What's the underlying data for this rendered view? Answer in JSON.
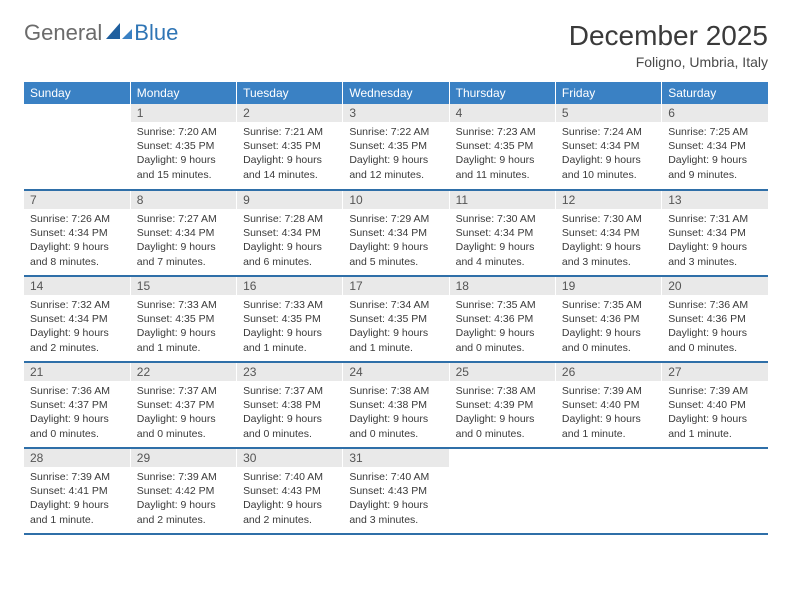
{
  "logo": {
    "general": "General",
    "blue": "Blue"
  },
  "title": "December 2025",
  "location": "Foligno, Umbria, Italy",
  "colors": {
    "header_bg": "#3a81c4",
    "row_border": "#2f6fa8",
    "daynum_bg": "#e9e9e9",
    "logo_gray": "#6b6b6b",
    "logo_blue": "#2f75b5"
  },
  "weekdays": [
    "Sunday",
    "Monday",
    "Tuesday",
    "Wednesday",
    "Thursday",
    "Friday",
    "Saturday"
  ],
  "weeks": [
    [
      {
        "n": "",
        "l1": "",
        "l2": "",
        "l3": ""
      },
      {
        "n": "1",
        "l1": "Sunrise: 7:20 AM",
        "l2": "Sunset: 4:35 PM",
        "l3": "Daylight: 9 hours and 15 minutes."
      },
      {
        "n": "2",
        "l1": "Sunrise: 7:21 AM",
        "l2": "Sunset: 4:35 PM",
        "l3": "Daylight: 9 hours and 14 minutes."
      },
      {
        "n": "3",
        "l1": "Sunrise: 7:22 AM",
        "l2": "Sunset: 4:35 PM",
        "l3": "Daylight: 9 hours and 12 minutes."
      },
      {
        "n": "4",
        "l1": "Sunrise: 7:23 AM",
        "l2": "Sunset: 4:35 PM",
        "l3": "Daylight: 9 hours and 11 minutes."
      },
      {
        "n": "5",
        "l1": "Sunrise: 7:24 AM",
        "l2": "Sunset: 4:34 PM",
        "l3": "Daylight: 9 hours and 10 minutes."
      },
      {
        "n": "6",
        "l1": "Sunrise: 7:25 AM",
        "l2": "Sunset: 4:34 PM",
        "l3": "Daylight: 9 hours and 9 minutes."
      }
    ],
    [
      {
        "n": "7",
        "l1": "Sunrise: 7:26 AM",
        "l2": "Sunset: 4:34 PM",
        "l3": "Daylight: 9 hours and 8 minutes."
      },
      {
        "n": "8",
        "l1": "Sunrise: 7:27 AM",
        "l2": "Sunset: 4:34 PM",
        "l3": "Daylight: 9 hours and 7 minutes."
      },
      {
        "n": "9",
        "l1": "Sunrise: 7:28 AM",
        "l2": "Sunset: 4:34 PM",
        "l3": "Daylight: 9 hours and 6 minutes."
      },
      {
        "n": "10",
        "l1": "Sunrise: 7:29 AM",
        "l2": "Sunset: 4:34 PM",
        "l3": "Daylight: 9 hours and 5 minutes."
      },
      {
        "n": "11",
        "l1": "Sunrise: 7:30 AM",
        "l2": "Sunset: 4:34 PM",
        "l3": "Daylight: 9 hours and 4 minutes."
      },
      {
        "n": "12",
        "l1": "Sunrise: 7:30 AM",
        "l2": "Sunset: 4:34 PM",
        "l3": "Daylight: 9 hours and 3 minutes."
      },
      {
        "n": "13",
        "l1": "Sunrise: 7:31 AM",
        "l2": "Sunset: 4:34 PM",
        "l3": "Daylight: 9 hours and 3 minutes."
      }
    ],
    [
      {
        "n": "14",
        "l1": "Sunrise: 7:32 AM",
        "l2": "Sunset: 4:34 PM",
        "l3": "Daylight: 9 hours and 2 minutes."
      },
      {
        "n": "15",
        "l1": "Sunrise: 7:33 AM",
        "l2": "Sunset: 4:35 PM",
        "l3": "Daylight: 9 hours and 1 minute."
      },
      {
        "n": "16",
        "l1": "Sunrise: 7:33 AM",
        "l2": "Sunset: 4:35 PM",
        "l3": "Daylight: 9 hours and 1 minute."
      },
      {
        "n": "17",
        "l1": "Sunrise: 7:34 AM",
        "l2": "Sunset: 4:35 PM",
        "l3": "Daylight: 9 hours and 1 minute."
      },
      {
        "n": "18",
        "l1": "Sunrise: 7:35 AM",
        "l2": "Sunset: 4:36 PM",
        "l3": "Daylight: 9 hours and 0 minutes."
      },
      {
        "n": "19",
        "l1": "Sunrise: 7:35 AM",
        "l2": "Sunset: 4:36 PM",
        "l3": "Daylight: 9 hours and 0 minutes."
      },
      {
        "n": "20",
        "l1": "Sunrise: 7:36 AM",
        "l2": "Sunset: 4:36 PM",
        "l3": "Daylight: 9 hours and 0 minutes."
      }
    ],
    [
      {
        "n": "21",
        "l1": "Sunrise: 7:36 AM",
        "l2": "Sunset: 4:37 PM",
        "l3": "Daylight: 9 hours and 0 minutes."
      },
      {
        "n": "22",
        "l1": "Sunrise: 7:37 AM",
        "l2": "Sunset: 4:37 PM",
        "l3": "Daylight: 9 hours and 0 minutes."
      },
      {
        "n": "23",
        "l1": "Sunrise: 7:37 AM",
        "l2": "Sunset: 4:38 PM",
        "l3": "Daylight: 9 hours and 0 minutes."
      },
      {
        "n": "24",
        "l1": "Sunrise: 7:38 AM",
        "l2": "Sunset: 4:38 PM",
        "l3": "Daylight: 9 hours and 0 minutes."
      },
      {
        "n": "25",
        "l1": "Sunrise: 7:38 AM",
        "l2": "Sunset: 4:39 PM",
        "l3": "Daylight: 9 hours and 0 minutes."
      },
      {
        "n": "26",
        "l1": "Sunrise: 7:39 AM",
        "l2": "Sunset: 4:40 PM",
        "l3": "Daylight: 9 hours and 1 minute."
      },
      {
        "n": "27",
        "l1": "Sunrise: 7:39 AM",
        "l2": "Sunset: 4:40 PM",
        "l3": "Daylight: 9 hours and 1 minute."
      }
    ],
    [
      {
        "n": "28",
        "l1": "Sunrise: 7:39 AM",
        "l2": "Sunset: 4:41 PM",
        "l3": "Daylight: 9 hours and 1 minute."
      },
      {
        "n": "29",
        "l1": "Sunrise: 7:39 AM",
        "l2": "Sunset: 4:42 PM",
        "l3": "Daylight: 9 hours and 2 minutes."
      },
      {
        "n": "30",
        "l1": "Sunrise: 7:40 AM",
        "l2": "Sunset: 4:43 PM",
        "l3": "Daylight: 9 hours and 2 minutes."
      },
      {
        "n": "31",
        "l1": "Sunrise: 7:40 AM",
        "l2": "Sunset: 4:43 PM",
        "l3": "Daylight: 9 hours and 3 minutes."
      },
      {
        "n": "",
        "l1": "",
        "l2": "",
        "l3": ""
      },
      {
        "n": "",
        "l1": "",
        "l2": "",
        "l3": ""
      },
      {
        "n": "",
        "l1": "",
        "l2": "",
        "l3": ""
      }
    ]
  ]
}
